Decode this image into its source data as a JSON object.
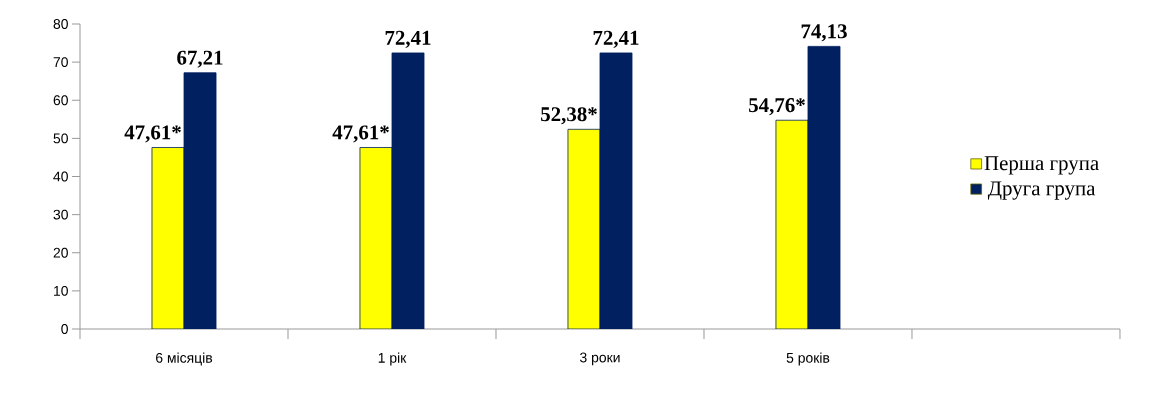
{
  "chart_data": {
    "type": "bar",
    "categories": [
      "6  місяців",
      "1 рік",
      "3 роки",
      "5 років",
      null
    ],
    "series": [
      {
        "name": "Перша група",
        "color": "#ffff00",
        "values": [
          47.61,
          47.61,
          52.38,
          54.76,
          null
        ],
        "value_labels": [
          "47,61*",
          "47,61*",
          "52,38*",
          "54,76*",
          null
        ]
      },
      {
        "name": "Друга група",
        "color": "#002060",
        "values": [
          67.21,
          72.41,
          72.41,
          74.13,
          null
        ],
        "value_labels": [
          "67,21",
          "72,41",
          "72,41",
          "74,13",
          null
        ]
      }
    ],
    "ylim": [
      0,
      80
    ],
    "yticks": [
      0,
      10,
      20,
      30,
      40,
      50,
      60,
      70,
      80
    ],
    "grid": false,
    "legend": "right"
  }
}
